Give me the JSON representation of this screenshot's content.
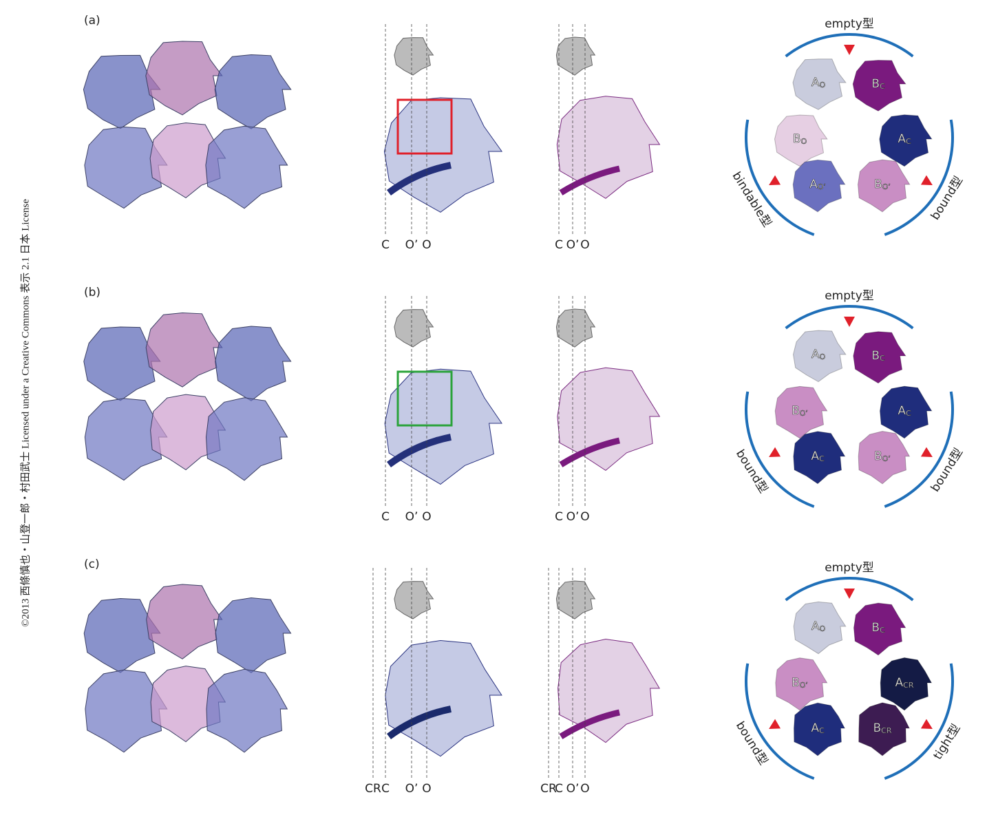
{
  "credit": "©2013 西條慎也・山登一郎・村田武士 Licensed under a Creative Commons 表示 2.1 日本 License",
  "panels": [
    {
      "label": "(a)",
      "middle_lines": [
        "C",
        "O’",
        "O"
      ],
      "right_lines": [
        "C",
        "O’",
        "O"
      ],
      "box_color": "#e0202a",
      "arcs": {
        "top": "empty型",
        "left": "bindable型",
        "right": "bound型"
      },
      "subunits": [
        {
          "name": "A",
          "sub": "O",
          "color": "#c9ccdd"
        },
        {
          "name": "B",
          "sub": "C",
          "color": "#7a1a7e"
        },
        {
          "name": "B",
          "sub": "O",
          "color": "#e6cfe3"
        },
        {
          "name": "A",
          "sub": "C",
          "color": "#1f2d7c"
        },
        {
          "name": "A",
          "sub": "O’",
          "color": "#6b70bf"
        },
        {
          "name": "B",
          "sub": "O’",
          "color": "#c98ec4"
        }
      ]
    },
    {
      "label": "(b)",
      "middle_lines": [
        "C",
        "O’",
        "O"
      ],
      "right_lines": [
        "C",
        "O’",
        "O"
      ],
      "box_color": "#2aa33a",
      "arcs": {
        "top": "empty型",
        "left": "bound型",
        "right": "bound型"
      },
      "subunits": [
        {
          "name": "A",
          "sub": "O",
          "color": "#c9ccdd"
        },
        {
          "name": "B",
          "sub": "C",
          "color": "#7a1a7e"
        },
        {
          "name": "B",
          "sub": "O’",
          "color": "#c98ec4"
        },
        {
          "name": "A",
          "sub": "C",
          "color": "#1f2d7c"
        },
        {
          "name": "A",
          "sub": "C",
          "color": "#1f2d7c"
        },
        {
          "name": "B",
          "sub": "O’",
          "color": "#c98ec4"
        }
      ]
    },
    {
      "label": "(c)",
      "middle_lines": [
        "CR",
        "C",
        "O’",
        "O"
      ],
      "right_lines": [
        "CR",
        "C",
        "O’",
        "O"
      ],
      "arcs": {
        "top": "empty型",
        "left": "bound型",
        "right": "tight型"
      },
      "subunits": [
        {
          "name": "A",
          "sub": "O",
          "color": "#c9ccdd"
        },
        {
          "name": "B",
          "sub": "C",
          "color": "#7a1a7e"
        },
        {
          "name": "B",
          "sub": "O’",
          "color": "#c98ec4"
        },
        {
          "name": "A",
          "sub": "CR",
          "color": "#141b45"
        },
        {
          "name": "A",
          "sub": "C",
          "color": "#1f2d7c"
        },
        {
          "name": "B",
          "sub": "CR",
          "color": "#3d1c52"
        }
      ]
    }
  ]
}
